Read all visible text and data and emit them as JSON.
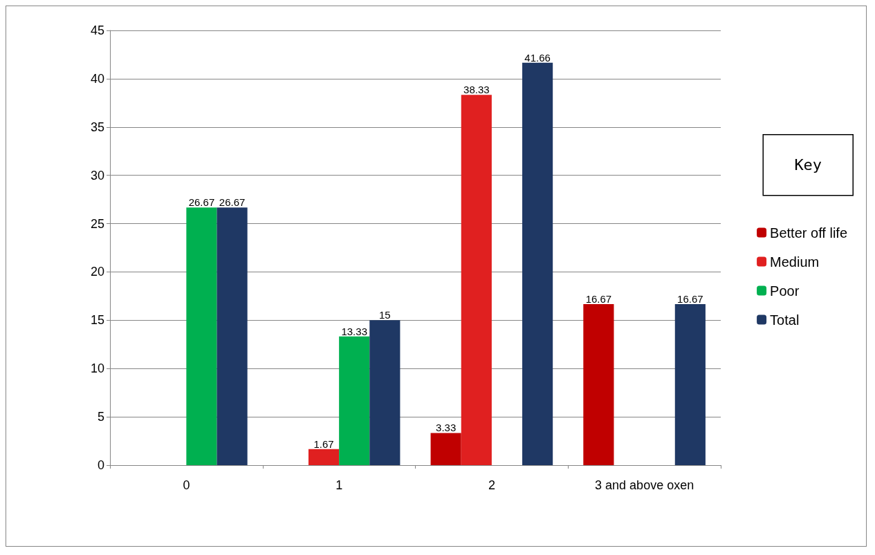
{
  "chart_data": {
    "type": "bar",
    "categories": [
      "0",
      "1",
      "2",
      "3 and above oxen"
    ],
    "series": [
      {
        "name": "Better off life",
        "color": "#c00000",
        "values": [
          null,
          null,
          3.33,
          16.67
        ]
      },
      {
        "name": "Medium",
        "color": "#e02020",
        "values": [
          null,
          1.67,
          38.33,
          null
        ]
      },
      {
        "name": "Poor",
        "color": "#00b050",
        "values": [
          26.67,
          13.33,
          null,
          null
        ]
      },
      {
        "name": "Total",
        "color": "#1f3864",
        "values": [
          26.67,
          15,
          41.66,
          16.67
        ]
      }
    ],
    "ylim": [
      0,
      45
    ],
    "yticks": [
      0,
      5,
      10,
      15,
      20,
      25,
      30,
      35,
      40,
      45
    ],
    "grid": "y",
    "legend": "right",
    "data_labels": true,
    "annotations": [
      "Key"
    ]
  }
}
